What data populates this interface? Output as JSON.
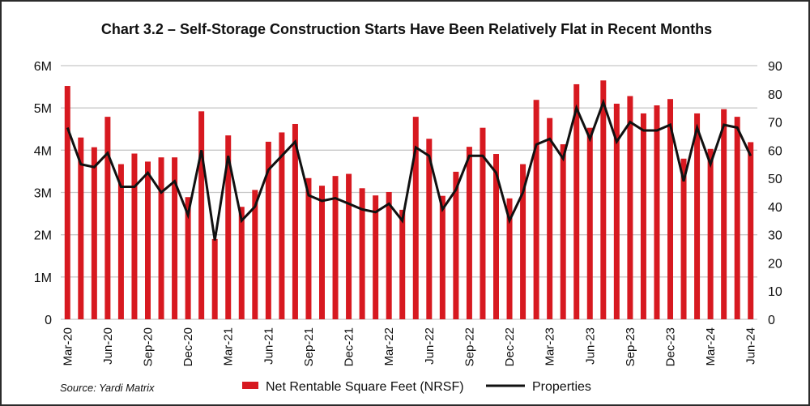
{
  "chart_data": {
    "type": "bar",
    "title": "Chart 3.2 – Self-Storage Construction Starts Have Been Relatively Flat in Recent Months",
    "source": "Source: Yardi Matrix",
    "categories": [
      "Mar-20",
      "Apr-20",
      "May-20",
      "Jun-20",
      "Jul-20",
      "Aug-20",
      "Sep-20",
      "Oct-20",
      "Nov-20",
      "Dec-20",
      "Jan-21",
      "Feb-21",
      "Mar-21",
      "Apr-21",
      "May-21",
      "Jun-21",
      "Jul-21",
      "Aug-21",
      "Sep-21",
      "Oct-21",
      "Nov-21",
      "Dec-21",
      "Jan-22",
      "Feb-22",
      "Mar-22",
      "Apr-22",
      "May-22",
      "Jun-22",
      "Jul-22",
      "Aug-22",
      "Sep-22",
      "Oct-22",
      "Nov-22",
      "Dec-22",
      "Jan-23",
      "Feb-23",
      "Mar-23",
      "Apr-23",
      "May-23",
      "Jun-23",
      "Jul-23",
      "Aug-23",
      "Sep-23",
      "Oct-23",
      "Nov-23",
      "Dec-23",
      "Jan-24",
      "Feb-24",
      "Mar-24",
      "Apr-24",
      "May-24",
      "Jun-24"
    ],
    "x_tick_labels": [
      "Mar-20",
      "Jun-20",
      "Sep-20",
      "Dec-20",
      "Mar-21",
      "Jun-21",
      "Sep-21",
      "Dec-21",
      "Mar-22",
      "Jun-22",
      "Sep-22",
      "Dec-22",
      "Mar-23",
      "Jun-23",
      "Sep-23",
      "Dec-23",
      "Mar-24",
      "Jun-24"
    ],
    "series": [
      {
        "name": "Net Rentable Square Feet (NRSF)",
        "type": "bar",
        "axis": "left",
        "color": "#d71920",
        "values": [
          5520000,
          4300000,
          4070000,
          4790000,
          3670000,
          3920000,
          3730000,
          3830000,
          3830000,
          2890000,
          4920000,
          1900000,
          4350000,
          2660000,
          3060000,
          4200000,
          4420000,
          4620000,
          3340000,
          3160000,
          3390000,
          3440000,
          3100000,
          2930000,
          3010000,
          2590000,
          4790000,
          4270000,
          2920000,
          3490000,
          4080000,
          4530000,
          3910000,
          2860000,
          3670000,
          5190000,
          4760000,
          4140000,
          5560000,
          4530000,
          5650000,
          5100000,
          5280000,
          4870000,
          5060000,
          5210000,
          3800000,
          4870000,
          4030000,
          4970000,
          4790000,
          4190000
        ]
      },
      {
        "name": "Properties",
        "type": "line",
        "axis": "right",
        "color": "#111111",
        "values": [
          68,
          55,
          54,
          59,
          47,
          47,
          52,
          45,
          49,
          37,
          60,
          28,
          58,
          35,
          40,
          53,
          58,
          63,
          44,
          42,
          43,
          41,
          39,
          38,
          41,
          35,
          61,
          58,
          39,
          46,
          58,
          58,
          52,
          35,
          45,
          62,
          64,
          57,
          75,
          64,
          77,
          63,
          70,
          67,
          67,
          69,
          49,
          68,
          55,
          69,
          68,
          58
        ]
      }
    ],
    "y_left": {
      "ylim": [
        0,
        6000000
      ],
      "tick_labels": [
        "0",
        "1M",
        "2M",
        "3M",
        "4M",
        "5M",
        "6M"
      ]
    },
    "y_right": {
      "ylim": [
        0,
        90
      ],
      "tick_labels": [
        "0",
        "10",
        "20",
        "30",
        "40",
        "50",
        "60",
        "70",
        "80",
        "90"
      ]
    },
    "grid": true,
    "legend": "bottom"
  }
}
